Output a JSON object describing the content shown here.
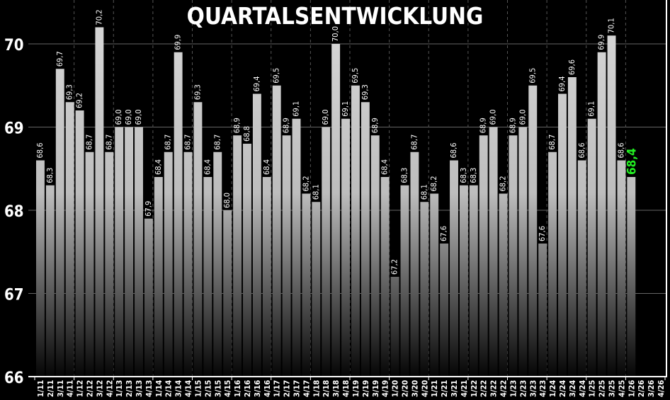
{
  "chart_data": {
    "type": "bar",
    "title": "QUARTALSENTWICKLUNG",
    "xlabel": "",
    "ylabel": "",
    "ylim": [
      66,
      70.5
    ],
    "yticks": [
      66,
      67,
      68,
      69,
      70
    ],
    "grid": "dashed vertical at year boundaries, horizontal at integer values",
    "categories": [
      "1/11",
      "2/11",
      "3/11",
      "4/11",
      "1/12",
      "2/12",
      "3/12",
      "4/12",
      "1/13",
      "2/13",
      "3/13",
      "4/13",
      "1/14",
      "2/14",
      "3/14",
      "4/14",
      "1/15",
      "2/15",
      "3/15",
      "4/15",
      "1/16",
      "2/16",
      "3/16",
      "4/16",
      "1/17",
      "2/17",
      "3/17",
      "4/17",
      "1/18",
      "2/18",
      "3/18",
      "4/18",
      "1/19",
      "2/19",
      "3/19",
      "4/19",
      "1/20",
      "2/20",
      "3/20",
      "4/20",
      "1/21",
      "2/21",
      "3/21",
      "4/21",
      "1/22",
      "2/22",
      "3/22",
      "4/22",
      "1/23",
      "2/23",
      "3/23",
      "4/23",
      "1/24",
      "2/24",
      "3/24",
      "4/24",
      "1/25",
      "2/25",
      "3/25",
      "4/25",
      "1/26",
      "2/26",
      "3/26",
      "4/26"
    ],
    "values": [
      68.6,
      68.3,
      69.7,
      69.3,
      69.2,
      68.7,
      70.2,
      68.7,
      69.0,
      69.0,
      69.0,
      67.9,
      68.4,
      68.7,
      69.9,
      68.7,
      69.3,
      68.4,
      68.7,
      68.0,
      68.9,
      68.8,
      69.4,
      68.4,
      69.5,
      68.9,
      69.1,
      68.2,
      68.1,
      69.0,
      70.0,
      69.1,
      69.5,
      69.3,
      68.9,
      68.4,
      67.2,
      68.3,
      68.7,
      68.1,
      68.2,
      67.6,
      68.6,
      68.3,
      68.3,
      68.9,
      69.0,
      68.2,
      68.9,
      69.0,
      69.5,
      67.6,
      68.7,
      69.4,
      69.6,
      68.6,
      69.1,
      69.9,
      70.1,
      68.6,
      68.4,
      null,
      null,
      null
    ],
    "decimal_separator": ",",
    "colors": {
      "background": "#000000",
      "bar_top": "#d4d4d4",
      "bar_bottom": "#000000",
      "text": "#ffffff",
      "latest_value": "#22ee22",
      "grid": "#666666"
    }
  }
}
